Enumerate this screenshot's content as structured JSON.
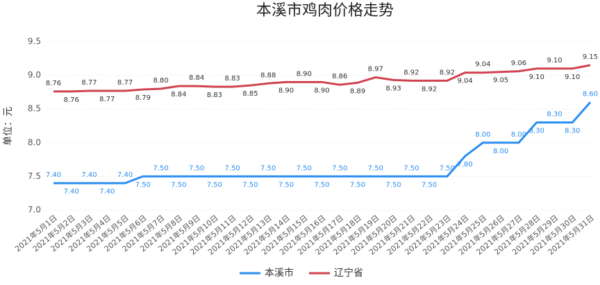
{
  "chart_data": {
    "type": "line",
    "title": "本溪市鸡肉价格走势",
    "y_label": "单位：元",
    "categories": [
      "2021年5月1日",
      "2021年5月2日",
      "2021年5月3日",
      "2021年5月4日",
      "2021年5月5日",
      "2021年5月6日",
      "2021年5月7日",
      "2021年5月8日",
      "2021年5月9日",
      "2021年5月10日",
      "2021年5月11日",
      "2021年5月12日",
      "2021年5月13日",
      "2021年5月14日",
      "2021年5月15日",
      "2021年5月16日",
      "2021年5月17日",
      "2021年5月18日",
      "2021年5月19日",
      "2021年5月20日",
      "2021年5月21日",
      "2021年5月22日",
      "2021年5月23日",
      "2021年5月24日",
      "2021年5月25日",
      "2021年5月26日",
      "2021年5月27日",
      "2021年5月28日",
      "2021年5月29日",
      "2021年5月30日",
      "2021年5月31日"
    ],
    "series": [
      {
        "name": "本溪市",
        "color": "#2b8ef0",
        "values": [
          7.4,
          7.4,
          7.4,
          7.4,
          7.4,
          7.5,
          7.5,
          7.5,
          7.5,
          7.5,
          7.5,
          7.5,
          7.5,
          7.5,
          7.5,
          7.5,
          7.5,
          7.5,
          7.5,
          7.5,
          7.5,
          7.5,
          7.5,
          7.8,
          8.0,
          8.0,
          8.0,
          8.3,
          8.3,
          8.3,
          8.6
        ],
        "value_labels": [
          "7.40",
          "7.40",
          "7.40",
          "7.40",
          "7.40",
          "7.50",
          "7.50",
          "7.50",
          "7.50",
          "7.50",
          "7.50",
          "7.50",
          "7.50",
          "7.50",
          "7.50",
          "7.50",
          "7.50",
          "7.50",
          "7.50",
          "7.50",
          "7.50",
          "7.50",
          "7.50",
          "7.80",
          "8.00",
          "8.00",
          "8.00",
          "8.30",
          "8.30",
          "8.30",
          "8.60"
        ]
      },
      {
        "name": "辽宁省",
        "color": "#d0424f",
        "values": [
          8.76,
          8.76,
          8.77,
          8.77,
          8.77,
          8.79,
          8.8,
          8.84,
          8.84,
          8.83,
          8.83,
          8.85,
          8.88,
          8.9,
          8.9,
          8.9,
          8.86,
          8.89,
          8.97,
          8.93,
          8.92,
          8.92,
          8.92,
          9.04,
          9.04,
          9.05,
          9.06,
          9.1,
          9.1,
          9.1,
          9.15
        ],
        "value_labels": [
          "8.76",
          "8.76",
          "8.77",
          "8.77",
          "8.77",
          "8.79",
          "8.80",
          "8.84",
          "8.84",
          "8.83",
          "8.83",
          "8.85",
          "8.88",
          "8.90",
          "8.90",
          "8.90",
          "8.86",
          "8.89",
          "8.97",
          "8.93",
          "8.92",
          "8.92",
          "8.92",
          "9.04",
          "9.04",
          "9.05",
          "9.06",
          "9.10",
          "9.10",
          "9.10",
          "9.15"
        ]
      }
    ],
    "ylim": [
      7.0,
      9.5
    ],
    "yticks": [
      {
        "value": 7,
        "label": "7.0"
      },
      7.5,
      {
        "value": 8,
        "label": "8.0"
      },
      8.5,
      {
        "value": 9,
        "label": "9.0"
      },
      9.5
    ],
    "grid": true,
    "legend": "bottom"
  }
}
